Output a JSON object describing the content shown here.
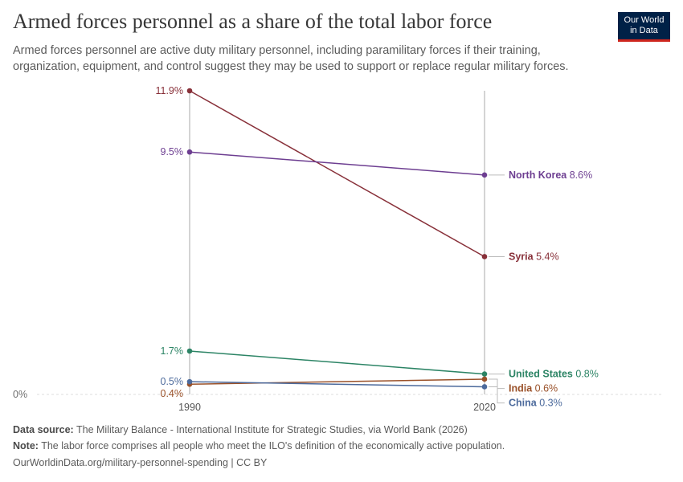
{
  "header": {
    "title": "Armed forces personnel as a share of the total labor force",
    "subtitle": "Armed forces personnel are active duty military personnel, including paramilitary forces if their training, organization, equipment, and control suggest they may be used to support or replace regular military forces.",
    "logo_line1": "Our World",
    "logo_line2": "in Data"
  },
  "colors": {
    "North Korea": "#6d3e91",
    "Syria": "#883039",
    "United States": "#2c8465",
    "India": "#9a5129",
    "China": "#4c6a9c"
  },
  "chart_data": {
    "type": "line",
    "x": [
      1990,
      2020
    ],
    "tick_labels_x": [
      "1990",
      "2020"
    ],
    "y_zero_label": "0%",
    "ylim": [
      0,
      11.9
    ],
    "unit": "%",
    "series": [
      {
        "name": "Syria",
        "values": [
          11.9,
          5.4
        ],
        "start_label": "11.9%",
        "end_value_label": "5.4%"
      },
      {
        "name": "North Korea",
        "values": [
          9.5,
          8.6
        ],
        "start_label": "9.5%",
        "end_value_label": "8.6%"
      },
      {
        "name": "United States",
        "values": [
          1.7,
          0.8
        ],
        "start_label": "1.7%",
        "end_value_label": "0.8%"
      },
      {
        "name": "India",
        "values": [
          0.4,
          0.6
        ],
        "start_label": "0.4%",
        "end_value_label": "0.6%"
      },
      {
        "name": "China",
        "values": [
          0.5,
          0.3
        ],
        "start_label": "0.5%",
        "end_value_label": "0.3%"
      }
    ]
  },
  "footer": {
    "source_label": "Data source:",
    "source_text": "The Military Balance - International Institute for Strategic Studies, via World Bank (2026)",
    "note_label": "Note:",
    "note_text": "The labor force comprises all people who meet the ILO's definition of the economically active population.",
    "url": "OurWorldinData.org/military-personnel-spending | CC BY"
  }
}
